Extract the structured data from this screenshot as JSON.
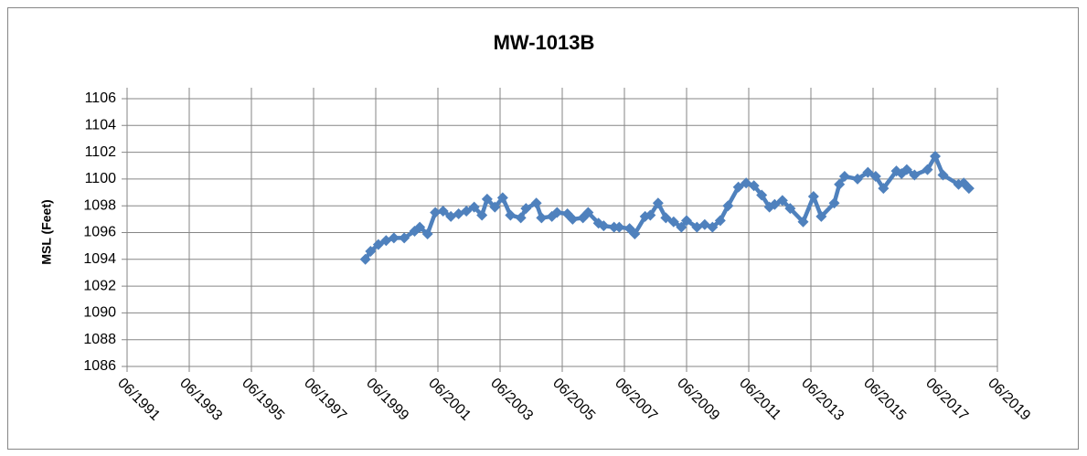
{
  "chart_data": {
    "type": "line",
    "title": "MW-1013B",
    "ylabel": "MSL (Feet)",
    "x": [
      "02/1999",
      "04/1999",
      "07/1999",
      "10/1999",
      "01/2000",
      "05/2000",
      "09/2000",
      "11/2000",
      "02/2001",
      "05/2001",
      "08/2001",
      "11/2001",
      "02/2002",
      "05/2002",
      "08/2002",
      "11/2002",
      "01/2003",
      "04/2003",
      "07/2003",
      "10/2003",
      "02/2004",
      "04/2004",
      "08/2004",
      "10/2004",
      "02/2005",
      "04/2005",
      "08/2005",
      "10/2005",
      "02/2006",
      "04/2006",
      "08/2006",
      "10/2006",
      "02/2007",
      "04/2007",
      "08/2007",
      "10/2007",
      "02/2008",
      "04/2008",
      "07/2008",
      "10/2008",
      "01/2009",
      "04/2009",
      "06/2009",
      "10/2009",
      "01/2010",
      "04/2010",
      "07/2010",
      "10/2010",
      "02/2011",
      "05/2011",
      "08/2011",
      "11/2011",
      "02/2012",
      "04/2012",
      "07/2012",
      "10/2012",
      "03/2013",
      "07/2013",
      "10/2013",
      "03/2014",
      "05/2014",
      "07/2014",
      "12/2014",
      "04/2015",
      "07/2015",
      "10/2015",
      "03/2016",
      "05/2016",
      "07/2016",
      "10/2016",
      "03/2017",
      "06/2017",
      "09/2017",
      "03/2018",
      "05/2018",
      "07/2018"
    ],
    "series": [
      {
        "name": "MW-1013B",
        "color": "#4f81bd",
        "values": [
          1094.0,
          1094.6,
          1095.1,
          1095.4,
          1095.6,
          1095.6,
          1096.1,
          1096.4,
          1095.9,
          1097.5,
          1097.6,
          1097.2,
          1097.4,
          1097.6,
          1097.9,
          1097.3,
          1098.5,
          1097.9,
          1098.6,
          1097.3,
          1097.1,
          1097.8,
          1098.2,
          1097.1,
          1097.2,
          1097.5,
          1097.4,
          1097.0,
          1097.1,
          1097.5,
          1096.7,
          1096.5,
          1096.4,
          1096.4,
          1096.3,
          1095.9,
          1097.2,
          1097.3,
          1098.2,
          1097.1,
          1096.8,
          1096.4,
          1096.9,
          1096.4,
          1096.6,
          1096.4,
          1096.9,
          1098.0,
          1099.4,
          1099.7,
          1099.5,
          1098.8,
          1097.9,
          1098.1,
          1098.4,
          1097.8,
          1096.8,
          1098.7,
          1097.2,
          1098.2,
          1099.6,
          1100.2,
          1100.0,
          1100.5,
          1100.2,
          1099.3,
          1100.6,
          1100.4,
          1100.7,
          1100.3,
          1100.7,
          1101.7,
          1100.3,
          1099.6,
          1099.7,
          1099.3
        ]
      }
    ],
    "xlim": [
      "06/1991",
      "06/2019"
    ],
    "xticks": [
      "06/1991",
      "06/1993",
      "06/1995",
      "06/1997",
      "06/1999",
      "06/2001",
      "06/2003",
      "06/2005",
      "06/2007",
      "06/2009",
      "06/2011",
      "06/2013",
      "06/2015",
      "06/2017",
      "06/2019"
    ],
    "ylim": [
      1086,
      1106
    ],
    "yticks": [
      1086,
      1088,
      1090,
      1092,
      1094,
      1096,
      1098,
      1100,
      1102,
      1104,
      1106
    ],
    "grid": true
  }
}
